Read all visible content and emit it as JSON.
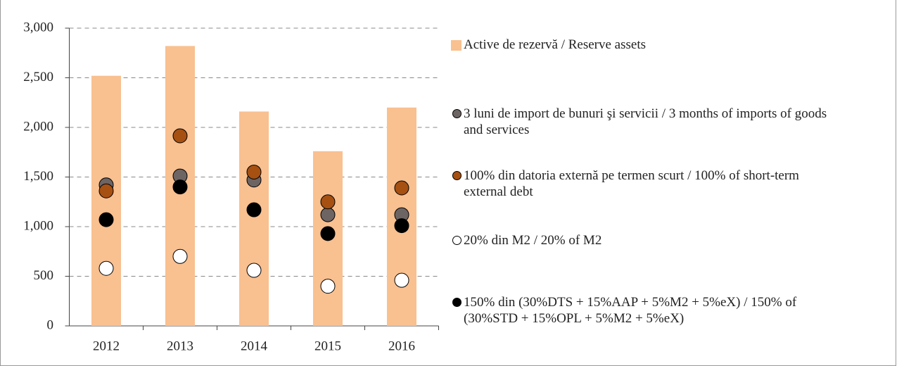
{
  "chart_data": {
    "type": "bar",
    "categories": [
      "2012",
      "2013",
      "2014",
      "2015",
      "2016"
    ],
    "ylim": [
      0,
      3000
    ],
    "yticks": [
      0,
      {
        "value": 500,
        "label": "500"
      },
      {
        "value": 1000,
        "label": "1,000"
      },
      {
        "value": 1500,
        "label": "1,500"
      },
      {
        "value": 2000,
        "label": "2,000"
      },
      {
        "value": 2500,
        "label": "2,500"
      },
      {
        "value": 3000,
        "label": "3,000"
      }
    ],
    "grid": true,
    "legend": "right",
    "series": [
      {
        "name": "Active de rezervă / Reserve assets",
        "type": "bar",
        "color": "#f9c090",
        "values": [
          2520,
          2820,
          2160,
          1760,
          2200
        ]
      },
      {
        "name": "3 luni de import de bunuri şi servicii / 3 months of imports of goods and services",
        "type": "scatter",
        "color": "#6d6464",
        "values": [
          1420,
          1510,
          1470,
          1120,
          1120
        ]
      },
      {
        "name": "100% din datoria externă pe termen scurt / 100% of short-term external debt",
        "type": "scatter",
        "color": "#a65012",
        "values": [
          1360,
          1915,
          1550,
          1250,
          1390
        ]
      },
      {
        "name": "20% din M2 / 20% of M2",
        "type": "scatter",
        "color": "#ffffff",
        "values": [
          580,
          700,
          560,
          400,
          460
        ]
      },
      {
        "name": "150% din (30%DTS + 15%AAP + 5%M2 + 5%eX) / 150% of (30%STD + 15%OPL + 5%M2 + 5%eX)",
        "type": "scatter",
        "color": "#000000",
        "values": [
          1070,
          1400,
          1170,
          930,
          1010
        ]
      }
    ]
  }
}
